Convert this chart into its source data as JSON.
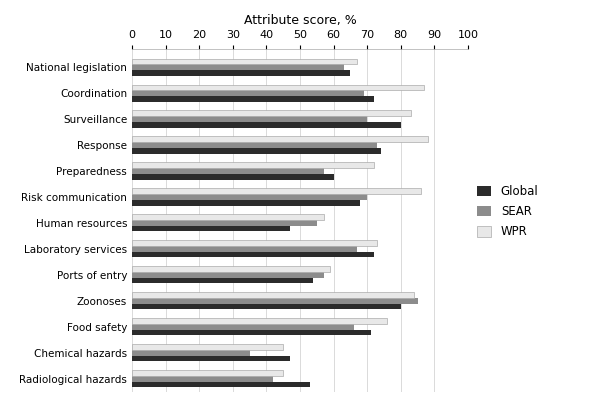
{
  "categories": [
    "National legislation",
    "Coordination",
    "Surveillance",
    "Response",
    "Preparedness",
    "Risk communication",
    "Human resources",
    "Laboratory services",
    "Ports of entry",
    "Zoonoses",
    "Food safety",
    "Chemical hazards",
    "Radiological hazards"
  ],
  "global": [
    65,
    72,
    80,
    74,
    60,
    68,
    47,
    72,
    54,
    80,
    71,
    47,
    53
  ],
  "sear": [
    63,
    69,
    70,
    73,
    57,
    70,
    55,
    67,
    57,
    85,
    66,
    35,
    42
  ],
  "wpr": [
    67,
    87,
    83,
    88,
    72,
    86,
    57,
    73,
    59,
    84,
    76,
    45,
    45
  ],
  "colors": {
    "global": "#2b2b2b",
    "sear": "#8c8c8c",
    "wpr": "#e8e8e8"
  },
  "title": "Attribute score, %",
  "xlim": [
    0,
    100
  ],
  "xticks": [
    0,
    10,
    20,
    30,
    40,
    50,
    60,
    70,
    80,
    90,
    100
  ],
  "legend_labels": [
    "Global",
    "SEAR",
    "WPR"
  ],
  "bar_height": 0.22,
  "figure_width": 6.0,
  "figure_height": 4.08,
  "dpi": 100
}
